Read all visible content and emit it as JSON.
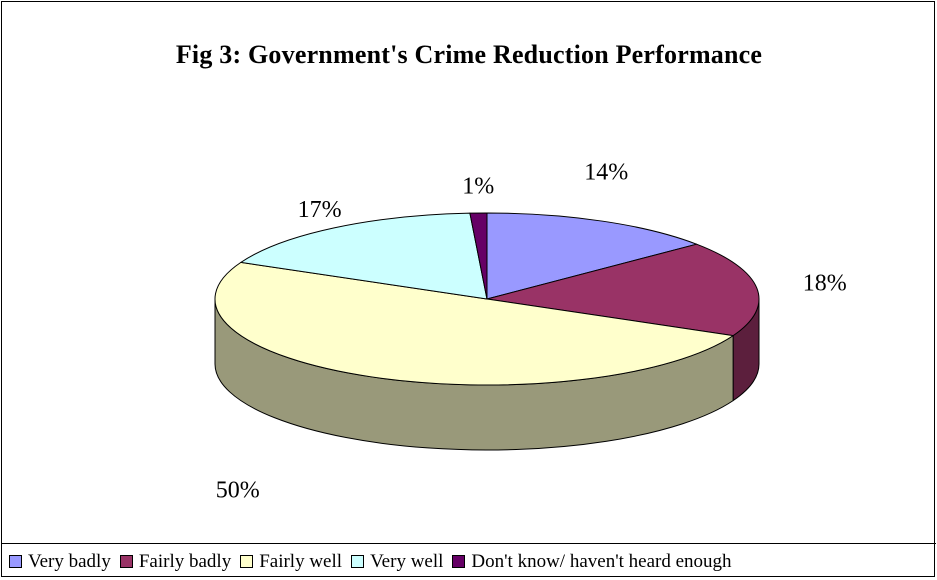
{
  "chart_data": {
    "type": "pie",
    "title": "Fig 3: Government's Crime Reduction Performance",
    "categories": [
      "Very badly",
      "Fairly badly",
      "Fairly well",
      "Very well",
      "Don't know/ haven't heard enough"
    ],
    "values": [
      14,
      18,
      50,
      17,
      1
    ],
    "data_labels": [
      "14%",
      "18%",
      "50%",
      "17%",
      "1%"
    ],
    "colors": [
      "#9999ff",
      "#993366",
      "#ffffcc",
      "#ccffff",
      "#660066"
    ],
    "side_colors": [
      "#5c5c99",
      "#5c1f3d",
      "#99997a",
      "#7a9999",
      "#3d003d"
    ],
    "legend_position": "bottom",
    "style": "3d-exploded-none"
  }
}
